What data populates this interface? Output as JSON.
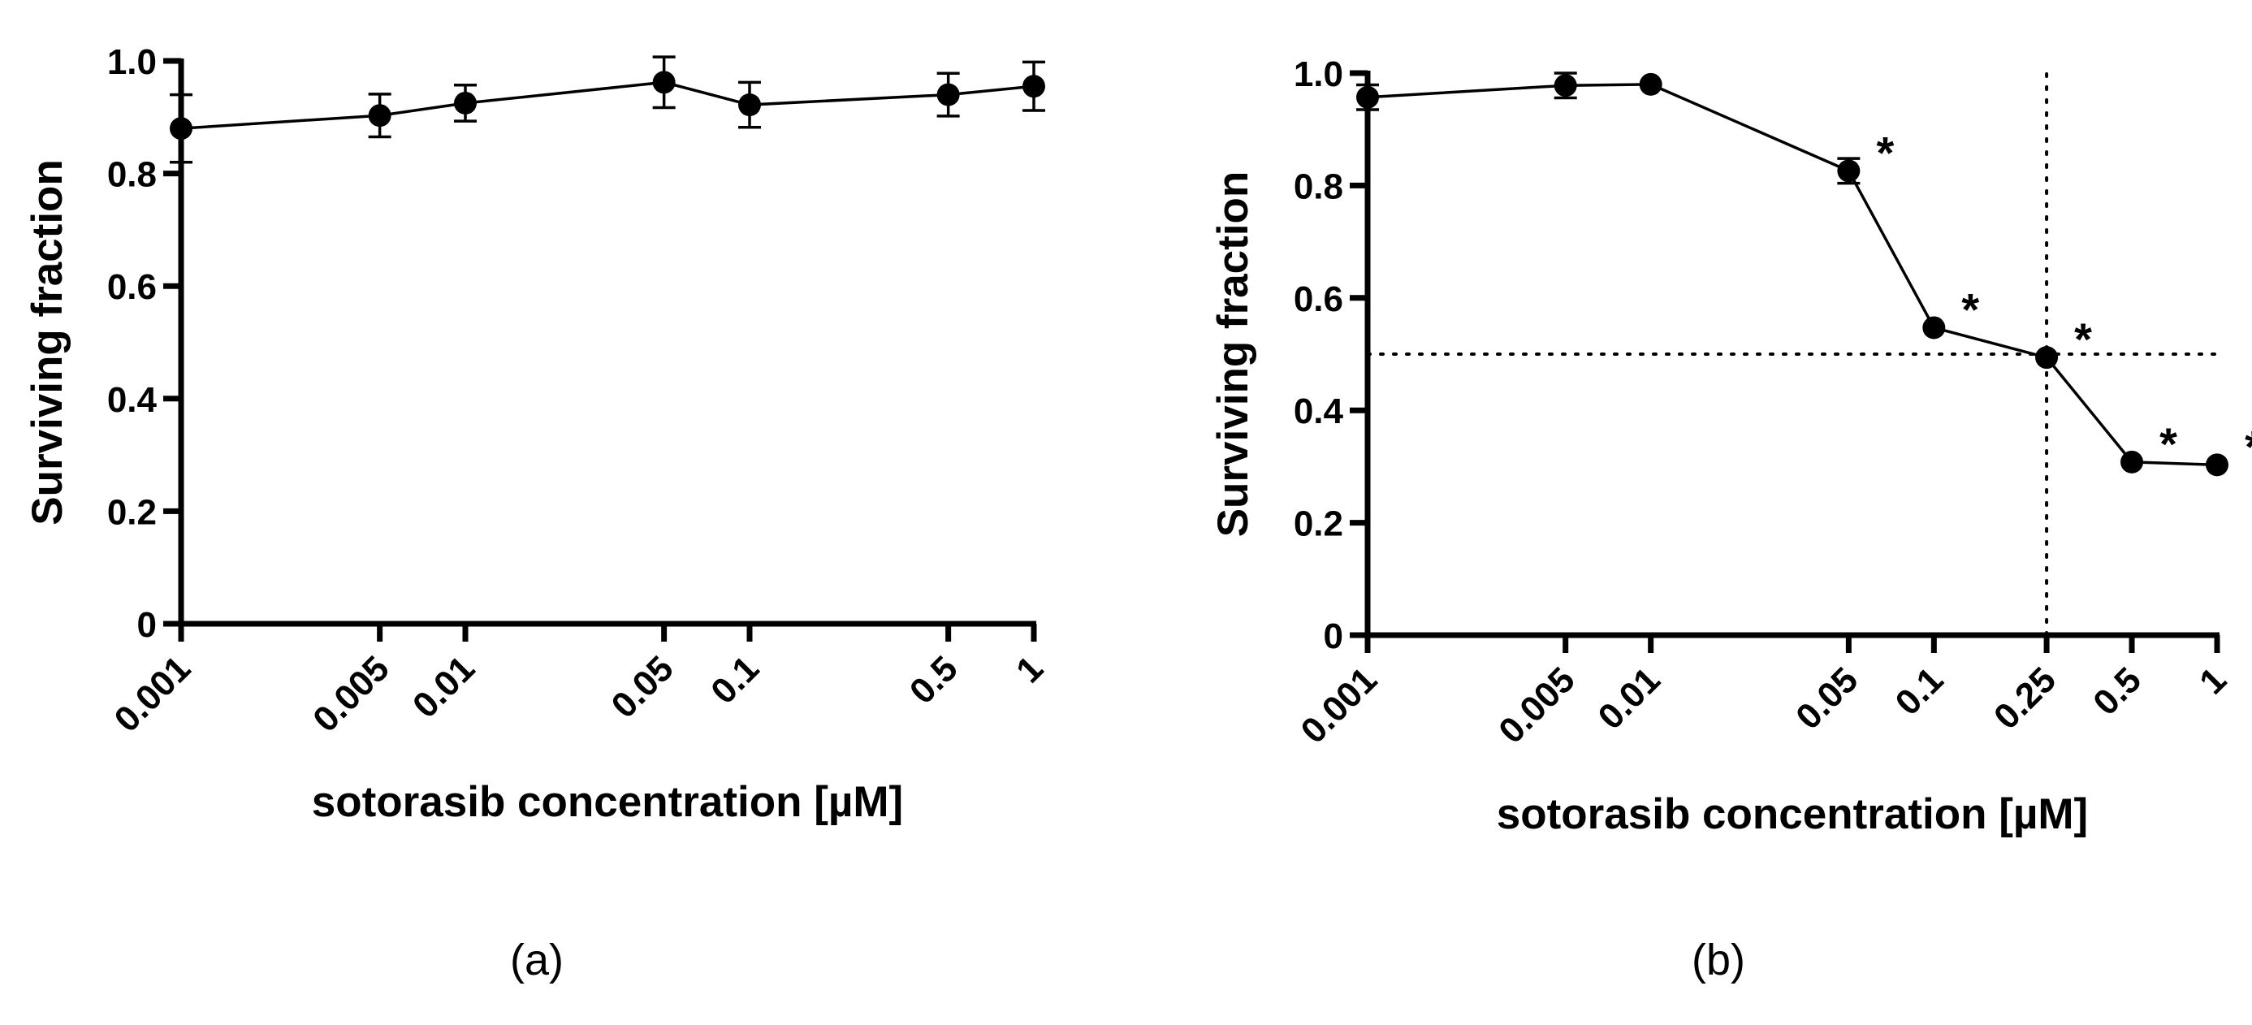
{
  "chart_data": [
    {
      "type": "line",
      "panel_label": "(a)",
      "xscale": "log",
      "xlabel": "sotorasib concentration [µM]",
      "ylabel": "Surviving fraction",
      "xlim": [
        0.001,
        1
      ],
      "ylim": [
        0,
        1.0
      ],
      "x_ticks": [
        0.001,
        0.005,
        0.01,
        0.05,
        0.1,
        0.5,
        1
      ],
      "x_tick_labels": [
        "0.001",
        "0.005",
        "0.01",
        "0.05",
        "0.1",
        "0.5",
        "1"
      ],
      "y_ticks": [
        0,
        0.2,
        0.4,
        0.6,
        0.8,
        1.0
      ],
      "y_tick_labels": [
        "0",
        "0.2",
        "0.4",
        "0.6",
        "0.8",
        "1.0"
      ],
      "x": [
        0.001,
        0.005,
        0.01,
        0.05,
        0.1,
        0.5,
        1
      ],
      "y": [
        0.88,
        0.903,
        0.925,
        0.962,
        0.922,
        0.94,
        0.955
      ],
      "error": [
        0.06,
        0.038,
        0.032,
        0.045,
        0.04,
        0.038,
        0.043
      ],
      "significance": [],
      "reference_lines": []
    },
    {
      "type": "line",
      "panel_label": "(b)",
      "xscale": "log",
      "xlabel": "sotorasib concentration [µM]",
      "ylabel": "Surviving fraction",
      "xlim": [
        0.001,
        1
      ],
      "ylim": [
        0,
        1.0
      ],
      "x_ticks": [
        0.001,
        0.005,
        0.01,
        0.05,
        0.1,
        0.25,
        0.5,
        1
      ],
      "x_tick_labels": [
        "0.001",
        "0.005",
        "0.01",
        "0.05",
        "0.1",
        "0.25",
        "0.5",
        "1"
      ],
      "y_ticks": [
        0,
        0.2,
        0.4,
        0.6,
        0.8,
        1.0
      ],
      "y_tick_labels": [
        "0",
        "0.2",
        "0.4",
        "0.6",
        "0.8",
        "1.0"
      ],
      "x": [
        0.001,
        0.005,
        0.01,
        0.05,
        0.1,
        0.25,
        0.5,
        1
      ],
      "y": [
        0.957,
        0.978,
        0.98,
        0.826,
        0.547,
        0.494,
        0.308,
        0.303
      ],
      "error": [
        0.022,
        0.022,
        0,
        0.022,
        0,
        0,
        0,
        0
      ],
      "significance": [
        {
          "x": 0.05,
          "y": 0.826,
          "label": "*"
        },
        {
          "x": 0.1,
          "y": 0.547,
          "label": "*"
        },
        {
          "x": 0.25,
          "y": 0.494,
          "label": "*"
        },
        {
          "x": 0.5,
          "y": 0.308,
          "label": "*"
        },
        {
          "x": 1,
          "y": 0.303,
          "label": "*"
        }
      ],
      "reference_lines": [
        {
          "orientation": "horizontal",
          "value": 0.5,
          "style": "dotted"
        },
        {
          "orientation": "vertical",
          "value": 0.25,
          "style": "dotted"
        }
      ]
    }
  ]
}
